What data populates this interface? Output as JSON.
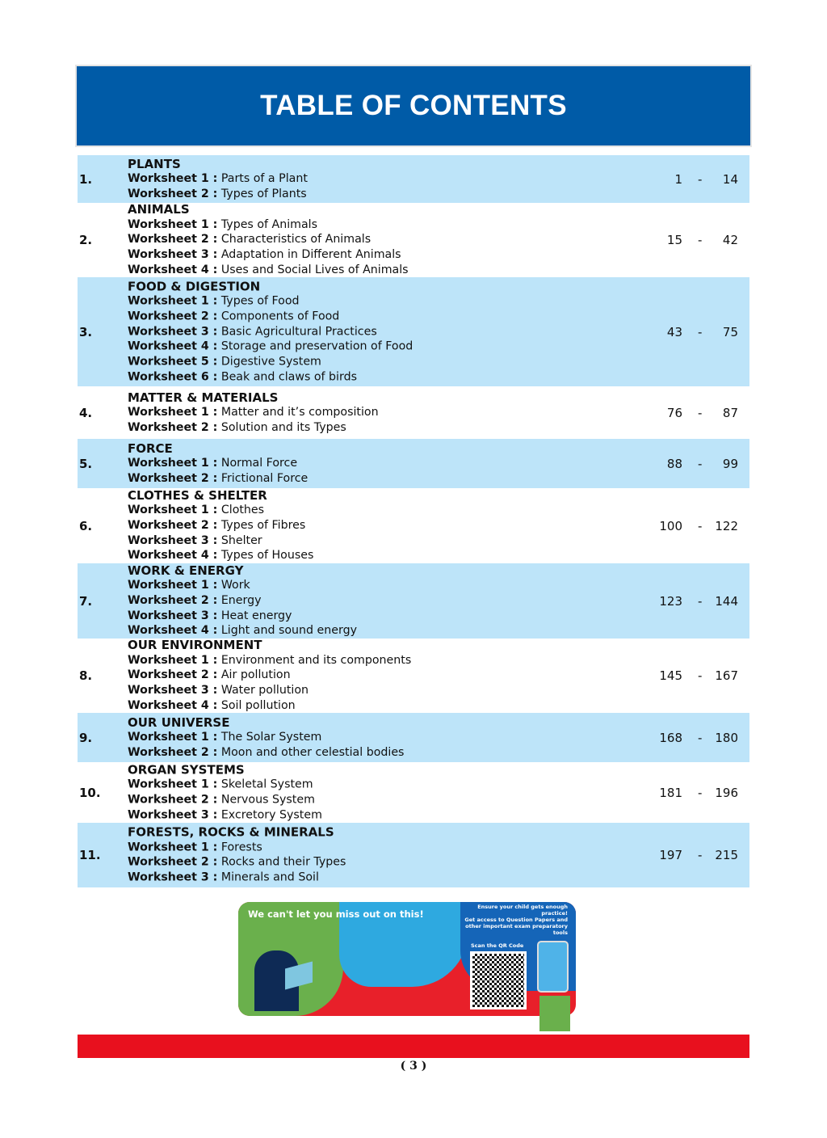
{
  "header": {
    "title": "TABLE OF CONTENTS"
  },
  "colors": {
    "header_blue": "#005ba7",
    "row_blue": "#bde4f9",
    "footer_red": "#e8101e"
  },
  "chapters": [
    {
      "num": "1.",
      "title": "PLANTS",
      "start": "1",
      "end": "14",
      "shaded": true,
      "worksheets": [
        {
          "label": "Worksheet 1 :",
          "name": "Parts of a Plant"
        },
        {
          "label": "Worksheet 2 :",
          "name": "Types of Plants"
        }
      ]
    },
    {
      "num": "2.",
      "title": "ANIMALS",
      "start": "15",
      "end": "42",
      "shaded": false,
      "worksheets": [
        {
          "label": "Worksheet 1 :",
          "name": "Types of Animals"
        },
        {
          "label": "Worksheet 2 :",
          "name": "Characteristics of Animals"
        },
        {
          "label": "Worksheet 3 :",
          "name": "Adaptation in Different Animals"
        },
        {
          "label": "Worksheet 4 :",
          "name": "Uses and Social Lives of Animals"
        }
      ]
    },
    {
      "num": "3.",
      "title": "FOOD & DIGESTION",
      "start": "43",
      "end": "75",
      "shaded": true,
      "worksheets": [
        {
          "label": "Worksheet 1 :",
          "name": "Types of Food"
        },
        {
          "label": "Worksheet 2 :",
          "name": "Components of Food"
        },
        {
          "label": "Worksheet 3 :",
          "name": "Basic Agricultural Practices"
        },
        {
          "label": "Worksheet 4 :",
          "name": "Storage and preservation of Food"
        },
        {
          "label": "Worksheet 5 :",
          "name": "Digestive System"
        },
        {
          "label": "Worksheet 6 :",
          "name": "Beak and claws of birds"
        }
      ]
    },
    {
      "num": "4.",
      "title": "MATTER & MATERIALS",
      "start": "76",
      "end": "87",
      "shaded": false,
      "worksheets": [
        {
          "label": "Worksheet 1 :",
          "name": "Matter and it’s composition"
        },
        {
          "label": "Worksheet 2 :",
          "name": "Solution and its Types"
        }
      ]
    },
    {
      "num": "5.",
      "title": "FORCE",
      "start": "88",
      "end": "99",
      "shaded": true,
      "worksheets": [
        {
          "label": "Worksheet 1 :",
          "name": "Normal Force"
        },
        {
          "label": "Worksheet 2 :",
          "name": "Frictional Force"
        }
      ]
    },
    {
      "num": "6.",
      "title": "CLOTHES & SHELTER",
      "start": "100",
      "end": "122",
      "shaded": false,
      "worksheets": [
        {
          "label": "Worksheet 1 :",
          "name": "Clothes"
        },
        {
          "label": "Worksheet 2 :",
          "name": "Types of Fibres"
        },
        {
          "label": "Worksheet 3 :",
          "name": "Shelter"
        },
        {
          "label": "Worksheet 4 :",
          "name": "Types of Houses"
        }
      ]
    },
    {
      "num": "7.",
      "title": "WORK & ENERGY",
      "start": "123",
      "end": "144",
      "shaded": true,
      "worksheets": [
        {
          "label": "Worksheet 1 :",
          "name": "Work"
        },
        {
          "label": "Worksheet 2 :",
          "name": "Energy"
        },
        {
          "label": "Worksheet 3 :",
          "name": "Heat energy"
        },
        {
          "label": "Worksheet 4 :",
          "name": "Light and sound energy"
        }
      ]
    },
    {
      "num": "8.",
      "title": "OUR ENVIRONMENT",
      "start": "145",
      "end": "167",
      "shaded": false,
      "worksheets": [
        {
          "label": "Worksheet 1 :",
          "name": "Environment and its components"
        },
        {
          "label": "Worksheet 2 :",
          "name": "Air pollution"
        },
        {
          "label": "Worksheet 3 :",
          "name": "Water pollution"
        },
        {
          "label": "Worksheet 4 :",
          "name": "Soil pollution"
        }
      ]
    },
    {
      "num": "9.",
      "title": "OUR UNIVERSE",
      "start": "168",
      "end": "180",
      "shaded": true,
      "worksheets": [
        {
          "label": "Worksheet 1 :",
          "name": "The Solar System"
        },
        {
          "label": "Worksheet 2 :",
          "name": "Moon and other celestial bodies"
        }
      ]
    },
    {
      "num": "10.",
      "title": "ORGAN SYSTEMS",
      "start": "181",
      "end": "196",
      "shaded": false,
      "worksheets": [
        {
          "label": "Worksheet 1 :",
          "name": "Skeletal System"
        },
        {
          "label": "Worksheet 2 :",
          "name": "Nervous System"
        },
        {
          "label": "Worksheet 3 :",
          "name": "Excretory System"
        }
      ]
    },
    {
      "num": "11.",
      "title": "FORESTS, ROCKS & MINERALS",
      "start": "197",
      "end": "215",
      "shaded": true,
      "worksheets": [
        {
          "label": "Worksheet 1 :",
          "name": "Forests"
        },
        {
          "label": "Worksheet 2 :",
          "name": "Rocks and their Types"
        },
        {
          "label": "Worksheet 3 :",
          "name": "Minerals and Soil"
        }
      ]
    }
  ],
  "page_separator": "-",
  "banner": {
    "headline": "We can't let you miss out on this!",
    "tagline": "Ensure your child gets enough practice!",
    "subtext": "Get access to Question Papers and other important exam preparatory tools",
    "scan_label": "Scan the QR Code"
  },
  "footer": {
    "page_number": "( 3 )"
  }
}
